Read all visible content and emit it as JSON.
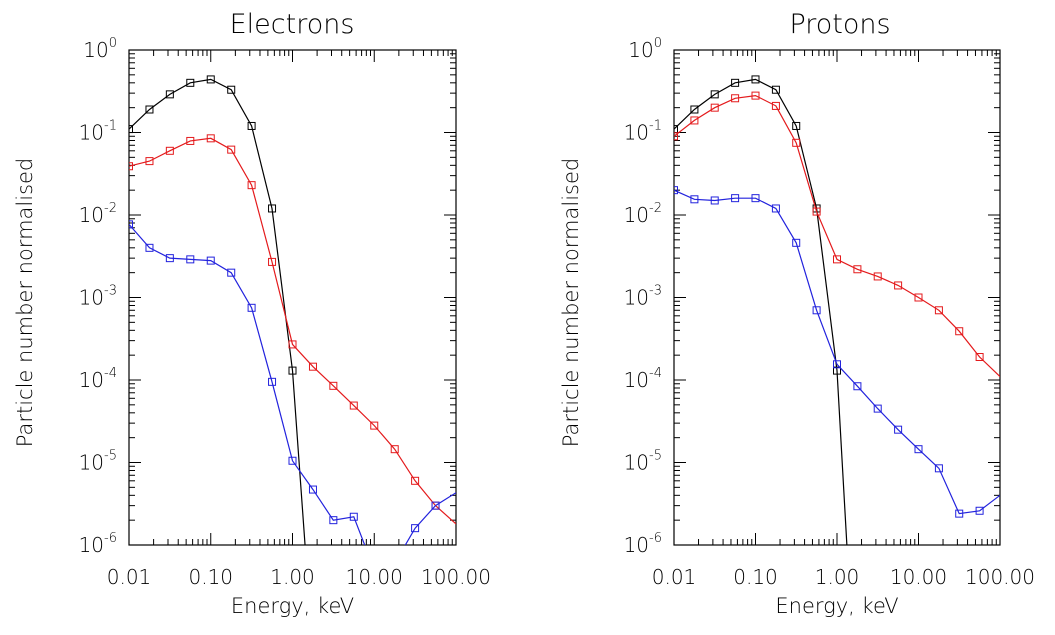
{
  "chart_data": [
    {
      "type": "line",
      "title": "Electrons",
      "xlabel": "Energy, keV",
      "ylabel": "Particle number normalised",
      "xscale": "log",
      "yscale": "log",
      "xlim": [
        0.01,
        100
      ],
      "ylim": [
        1e-06,
        1
      ],
      "xticks": [
        "0.01",
        "0.10",
        "1.00",
        "10.00",
        "100.00"
      ],
      "yticks": [
        {
          "base": "10",
          "exp": "-6"
        },
        {
          "base": "10",
          "exp": "-5"
        },
        {
          "base": "10",
          "exp": "-4"
        },
        {
          "base": "10",
          "exp": "-3"
        },
        {
          "base": "10",
          "exp": "-2"
        },
        {
          "base": "10",
          "exp": "-1"
        },
        {
          "base": "10",
          "exp": "0"
        }
      ],
      "series": [
        {
          "color": "#000000",
          "x": [
            0.01,
            0.0178,
            0.0316,
            0.0562,
            0.1,
            0.178,
            0.316,
            0.562,
            1.0,
            1.6
          ],
          "y": [
            0.11,
            0.19,
            0.29,
            0.4,
            0.44,
            0.33,
            0.12,
            0.012,
            0.00013,
            2e-07
          ],
          "markers": [
            0.01,
            0.0178,
            0.0316,
            0.0562,
            0.1,
            0.178,
            0.316,
            0.562,
            1.0
          ]
        },
        {
          "color": "#e41a1c",
          "x": [
            0.01,
            0.0178,
            0.0316,
            0.0562,
            0.1,
            0.178,
            0.316,
            0.562,
            1.0,
            1.78,
            3.16,
            5.62,
            10,
            17.8,
            31.6,
            56.2,
            100
          ],
          "y": [
            0.039,
            0.045,
            0.06,
            0.079,
            0.085,
            0.062,
            0.023,
            0.0027,
            0.00027,
            0.000145,
            8.5e-05,
            4.9e-05,
            2.8e-05,
            1.45e-05,
            6e-06,
            3e-06,
            1.8e-06
          ],
          "markers": [
            0.01,
            0.0178,
            0.0316,
            0.0562,
            0.1,
            0.178,
            0.316,
            0.562,
            1.0,
            1.78,
            3.16,
            5.62,
            10,
            17.8,
            31.6,
            56.2
          ]
        },
        {
          "color": "#2222dd",
          "x": [
            0.01,
            0.0178,
            0.0316,
            0.0562,
            0.1,
            0.178,
            0.316,
            0.562,
            1.0,
            1.78,
            3.16,
            5.62,
            10,
            17.8,
            31.6,
            56.2,
            100
          ],
          "y": [
            0.0077,
            0.004,
            0.003,
            0.0029,
            0.0028,
            0.002,
            0.00075,
            9.5e-05,
            1.05e-05,
            4.7e-06,
            2e-06,
            2.2e-06,
            5e-07,
            6e-07,
            1.6e-06,
            3e-06,
            4.3e-06
          ],
          "markers": [
            0.01,
            0.0178,
            0.0316,
            0.0562,
            0.1,
            0.178,
            0.316,
            0.562,
            1.0,
            1.78,
            3.16,
            5.62,
            31.6,
            56.2
          ]
        }
      ]
    },
    {
      "type": "line",
      "title": "Protons",
      "xlabel": "Energy, keV",
      "ylabel": "Particle number normalised",
      "xscale": "log",
      "yscale": "log",
      "xlim": [
        0.01,
        100
      ],
      "ylim": [
        1e-06,
        1
      ],
      "xticks": [
        "0.01",
        "0.10",
        "1.00",
        "10.00",
        "100.00"
      ],
      "yticks": [
        {
          "base": "10",
          "exp": "-6"
        },
        {
          "base": "10",
          "exp": "-5"
        },
        {
          "base": "10",
          "exp": "-4"
        },
        {
          "base": "10",
          "exp": "-3"
        },
        {
          "base": "10",
          "exp": "-2"
        },
        {
          "base": "10",
          "exp": "-1"
        },
        {
          "base": "10",
          "exp": "0"
        }
      ],
      "series": [
        {
          "color": "#000000",
          "x": [
            0.01,
            0.0178,
            0.0316,
            0.0562,
            0.1,
            0.178,
            0.316,
            0.562,
            1.0,
            1.35
          ],
          "y": [
            0.11,
            0.19,
            0.29,
            0.4,
            0.44,
            0.33,
            0.12,
            0.012,
            0.00013,
            7e-07
          ],
          "markers": [
            0.01,
            0.0178,
            0.0316,
            0.0562,
            0.1,
            0.178,
            0.316,
            0.562,
            1.0
          ]
        },
        {
          "color": "#e41a1c",
          "x": [
            0.01,
            0.0178,
            0.0316,
            0.0562,
            0.1,
            0.178,
            0.316,
            0.562,
            1.0,
            1.78,
            3.16,
            5.62,
            10,
            17.8,
            31.6,
            56.2,
            100
          ],
          "y": [
            0.09,
            0.14,
            0.2,
            0.26,
            0.28,
            0.21,
            0.075,
            0.011,
            0.0029,
            0.0022,
            0.0018,
            0.0014,
            0.001,
            0.0007,
            0.00039,
            0.00019,
            0.00011
          ],
          "markers": [
            0.01,
            0.0178,
            0.0316,
            0.0562,
            0.1,
            0.178,
            0.316,
            0.562,
            1.0,
            1.78,
            3.16,
            5.62,
            10,
            17.8,
            31.6,
            56.2
          ]
        },
        {
          "color": "#2222dd",
          "x": [
            0.01,
            0.0178,
            0.0316,
            0.0562,
            0.1,
            0.178,
            0.316,
            0.562,
            1.0,
            1.78,
            3.16,
            5.62,
            10,
            17.8,
            31.6,
            56.2,
            100
          ],
          "y": [
            0.02,
            0.0155,
            0.015,
            0.016,
            0.016,
            0.012,
            0.0046,
            0.0007,
            0.000155,
            8.4e-05,
            4.5e-05,
            2.5e-05,
            1.45e-05,
            8.5e-06,
            2.4e-06,
            2.6e-06,
            4e-06
          ],
          "markers": [
            0.01,
            0.0178,
            0.0316,
            0.0562,
            0.1,
            0.178,
            0.316,
            0.562,
            1.0,
            1.78,
            3.16,
            5.62,
            10,
            17.8,
            31.6,
            56.2
          ]
        }
      ]
    }
  ]
}
